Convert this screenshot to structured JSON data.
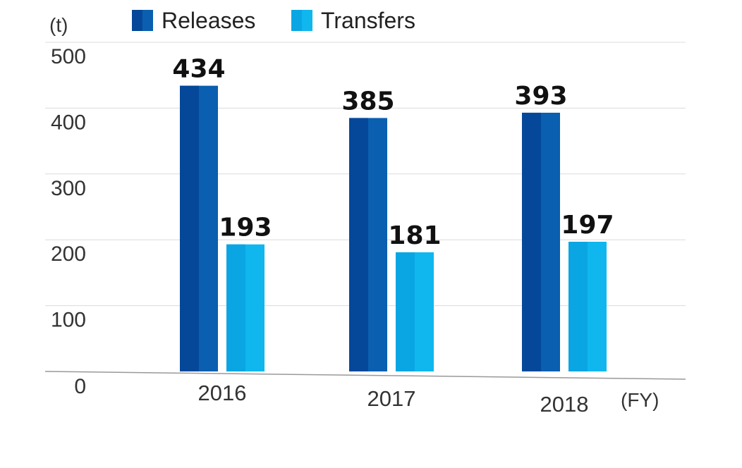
{
  "chart_data": {
    "type": "bar",
    "y_unit": "(t)",
    "x_unit": "(FY)",
    "categories": [
      "2016",
      "2017",
      "2018"
    ],
    "series": [
      {
        "name": "Releases",
        "values": [
          434,
          385,
          393
        ],
        "color": "#0a5fb0",
        "shade": "#054899"
      },
      {
        "name": "Transfers",
        "values": [
          193,
          181,
          197
        ],
        "color": "#0fb7ee",
        "shade": "#0aa6e3"
      }
    ],
    "ylim": [
      0,
      500
    ],
    "yticks": [
      0,
      100,
      200,
      300,
      400,
      500
    ],
    "grid": true,
    "legend": "top-left"
  }
}
